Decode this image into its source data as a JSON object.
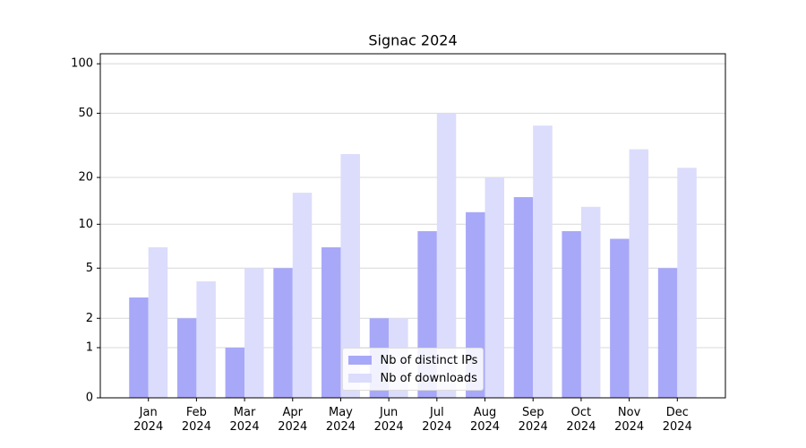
{
  "chart_data": {
    "type": "bar",
    "title": "Signac 2024",
    "categories": [
      "Jan 2024",
      "Feb 2024",
      "Mar 2024",
      "Apr 2024",
      "May 2024",
      "Jun 2024",
      "Jul 2024",
      "Aug 2024",
      "Sep 2024",
      "Oct 2024",
      "Nov 2024",
      "Dec 2024"
    ],
    "series": [
      {
        "name": "Nb of distinct IPs",
        "color": "#a8a8f8",
        "values": [
          3,
          2,
          1,
          5,
          7,
          2,
          9,
          12,
          15,
          9,
          8,
          5
        ]
      },
      {
        "name": "Nb of downloads",
        "color": "#dcdcfc",
        "values": [
          7,
          4,
          5,
          16,
          28,
          2,
          50,
          20,
          42,
          13,
          30,
          23
        ]
      }
    ],
    "ylim": [
      0,
      115
    ],
    "yticks": [
      0,
      1,
      2,
      5,
      10,
      20,
      50,
      100
    ],
    "log_scale": true,
    "grid": true,
    "legend": "lower center"
  }
}
